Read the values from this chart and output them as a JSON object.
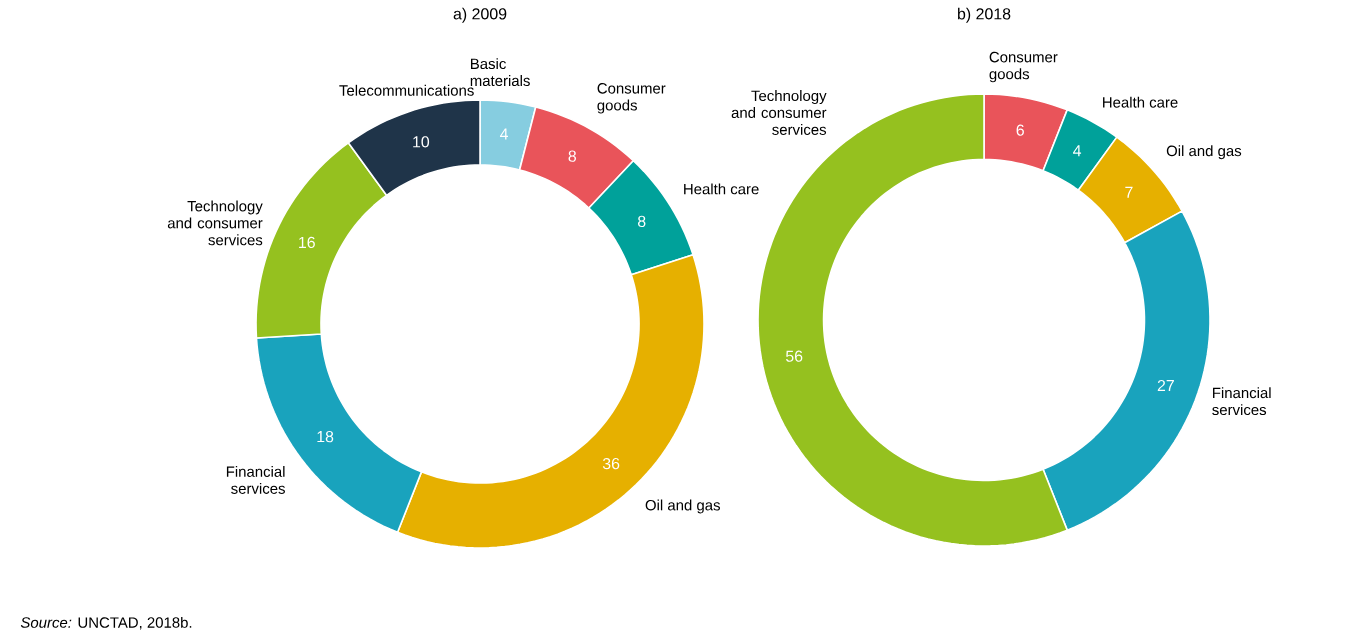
{
  "chart_data": [
    {
      "type": "donut",
      "title": "a) 2009",
      "categories": [
        "Basic materials",
        "Consumer goods",
        "Health care",
        "Oil and gas",
        "Financial services",
        "Technology and consumer services",
        "Telecommunications"
      ],
      "values": [
        4,
        8,
        8,
        36,
        18,
        16,
        10
      ],
      "colors": [
        "#86cde0",
        "#e9545a",
        "#00a19a",
        "#e6b000",
        "#19a3bd",
        "#95c11f",
        "#1f3449"
      ],
      "data_labels": true,
      "annotations": [
        "*Source:* UNCTAD, 2018b."
      ]
    },
    {
      "type": "donut",
      "title": "b) 2018",
      "categories": [
        "Consumer goods",
        "Health care",
        "Oil and gas",
        "Financial services",
        "Technology and consumer services"
      ],
      "values": [
        6,
        4,
        7,
        27,
        56
      ],
      "colors": [
        "#e9545a",
        "#00a19a",
        "#e6b000",
        "#19a3bd",
        "#95c11f"
      ],
      "data_labels": true
    }
  ]
}
